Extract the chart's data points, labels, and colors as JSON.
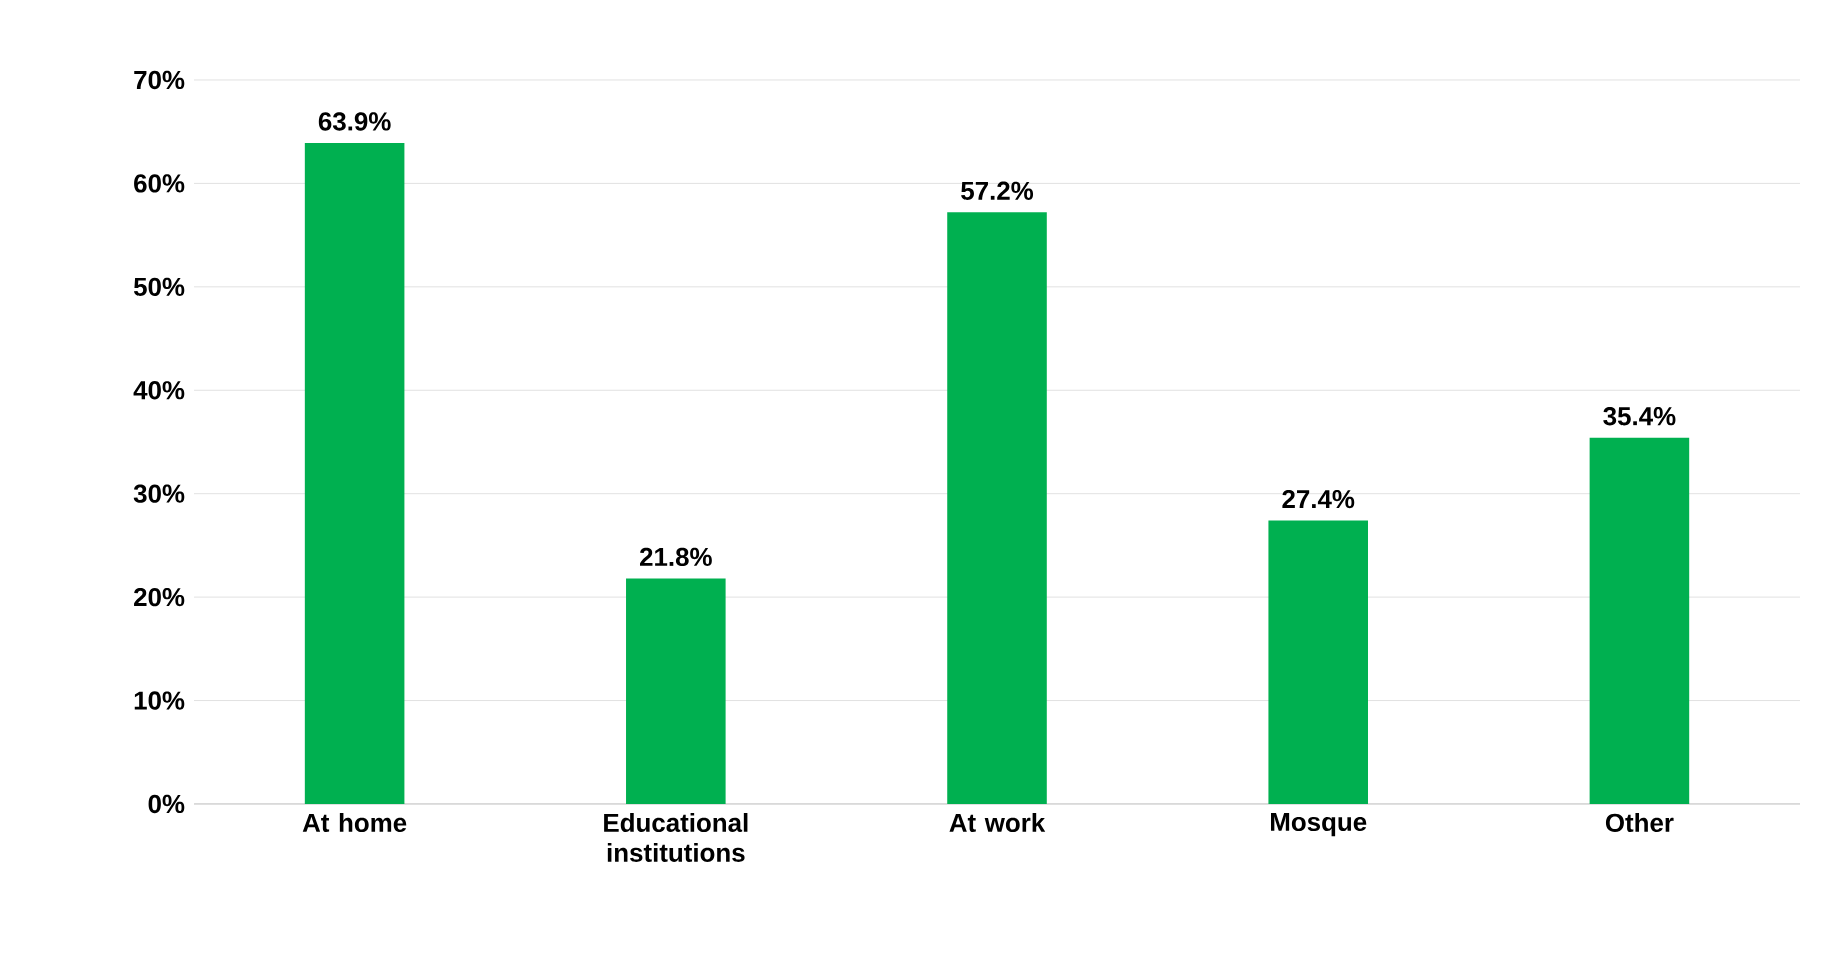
{
  "chart_data": {
    "type": "bar",
    "categories": [
      "At home",
      "Educational institutions",
      "At work",
      "Mosque",
      "Other"
    ],
    "values": [
      63.9,
      21.8,
      57.2,
      27.4,
      35.4
    ],
    "value_labels": [
      "63.9%",
      "21.8%",
      "57.2%",
      "27.4%",
      "35.4%"
    ],
    "color": "#00b050",
    "ylim": [
      0,
      70
    ],
    "yticks": [
      {
        "value": 0,
        "label": "0%"
      },
      {
        "value": 10,
        "label": "10%"
      },
      {
        "value": 20,
        "label": "20%"
      },
      {
        "value": 30,
        "label": "30%"
      },
      {
        "value": 40,
        "label": "40%"
      },
      {
        "value": 50,
        "label": "50%"
      },
      {
        "value": 60,
        "label": "60%"
      },
      {
        "value": 70,
        "label": "70%"
      }
    ],
    "grid": "y"
  }
}
